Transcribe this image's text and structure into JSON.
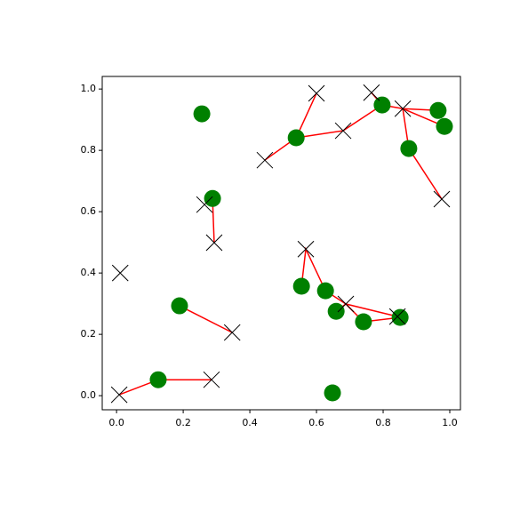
{
  "chart_data": {
    "type": "scatter",
    "xlim": [
      -0.043,
      1.032
    ],
    "ylim": [
      -0.046,
      1.041
    ],
    "xticks": [
      {
        "value": 0,
        "label": "0.0"
      },
      {
        "value": 0.2,
        "label": "0.2"
      },
      {
        "value": 0.4,
        "label": "0.4"
      },
      {
        "value": 0.6,
        "label": "0.6"
      },
      {
        "value": 0.8,
        "label": "0.8"
      },
      {
        "value": 1,
        "label": "1.0"
      }
    ],
    "yticks": [
      {
        "value": 0,
        "label": "0.0"
      },
      {
        "value": 0.2,
        "label": "0.2"
      },
      {
        "value": 0.4,
        "label": "0.4"
      },
      {
        "value": 0.6,
        "label": "0.6"
      },
      {
        "value": 0.8,
        "label": "0.8"
      },
      {
        "value": 1,
        "label": "1.0"
      }
    ],
    "series": [
      {
        "marker": "o",
        "color": "#008000",
        "x": [
          0.256,
          0.288,
          0.539,
          0.797,
          0.965,
          0.984,
          0.877,
          0.555,
          0.627,
          0.659,
          0.741,
          0.851,
          0.189,
          0.125,
          0.648
        ],
        "y": [
          0.919,
          0.643,
          0.841,
          0.948,
          0.93,
          0.878,
          0.806,
          0.357,
          0.342,
          0.275,
          0.241,
          0.255,
          0.293,
          0.052,
          0.009
        ]
      },
      {
        "marker": "x",
        "color": "#000000",
        "x": [
          0.6,
          0.765,
          0.68,
          0.859,
          0.445,
          0.976,
          0.264,
          0.293,
          0.568,
          0.688,
          0.843,
          0.347,
          0.011,
          0.285,
          0.008
        ],
        "y": [
          0.986,
          0.988,
          0.864,
          0.936,
          0.768,
          0.641,
          0.623,
          0.499,
          0.478,
          0.299,
          0.258,
          0.206,
          0.4,
          0.052,
          0.003
        ]
      }
    ],
    "line_color": "#ff0000",
    "segments": [
      {
        "x": [
          0.008,
          0.125,
          0.285
        ],
        "y": [
          0.003,
          0.052,
          0.052
        ]
      },
      {
        "x": [
          0.189,
          0.347
        ],
        "y": [
          0.293,
          0.206
        ]
      },
      {
        "x": [
          0.288,
          0.293
        ],
        "y": [
          0.643,
          0.499
        ]
      },
      {
        "x": [
          0.445,
          0.539,
          0.6
        ],
        "y": [
          0.768,
          0.841,
          0.986
        ]
      },
      {
        "x": [
          0.539,
          0.68,
          0.797,
          0.765
        ],
        "y": [
          0.841,
          0.864,
          0.948,
          0.988
        ]
      },
      {
        "x": [
          0.797,
          0.859,
          0.965
        ],
        "y": [
          0.948,
          0.936,
          0.93
        ]
      },
      {
        "x": [
          0.859,
          0.984
        ],
        "y": [
          0.936,
          0.878
        ]
      },
      {
        "x": [
          0.859,
          0.877,
          0.976
        ],
        "y": [
          0.936,
          0.806,
          0.641
        ]
      },
      {
        "x": [
          0.555,
          0.568,
          0.627,
          0.688,
          0.741,
          0.851
        ],
        "y": [
          0.357,
          0.478,
          0.342,
          0.299,
          0.241,
          0.255
        ]
      },
      {
        "x": [
          0.659,
          0.688,
          0.843
        ],
        "y": [
          0.275,
          0.299,
          0.258
        ]
      }
    ]
  }
}
